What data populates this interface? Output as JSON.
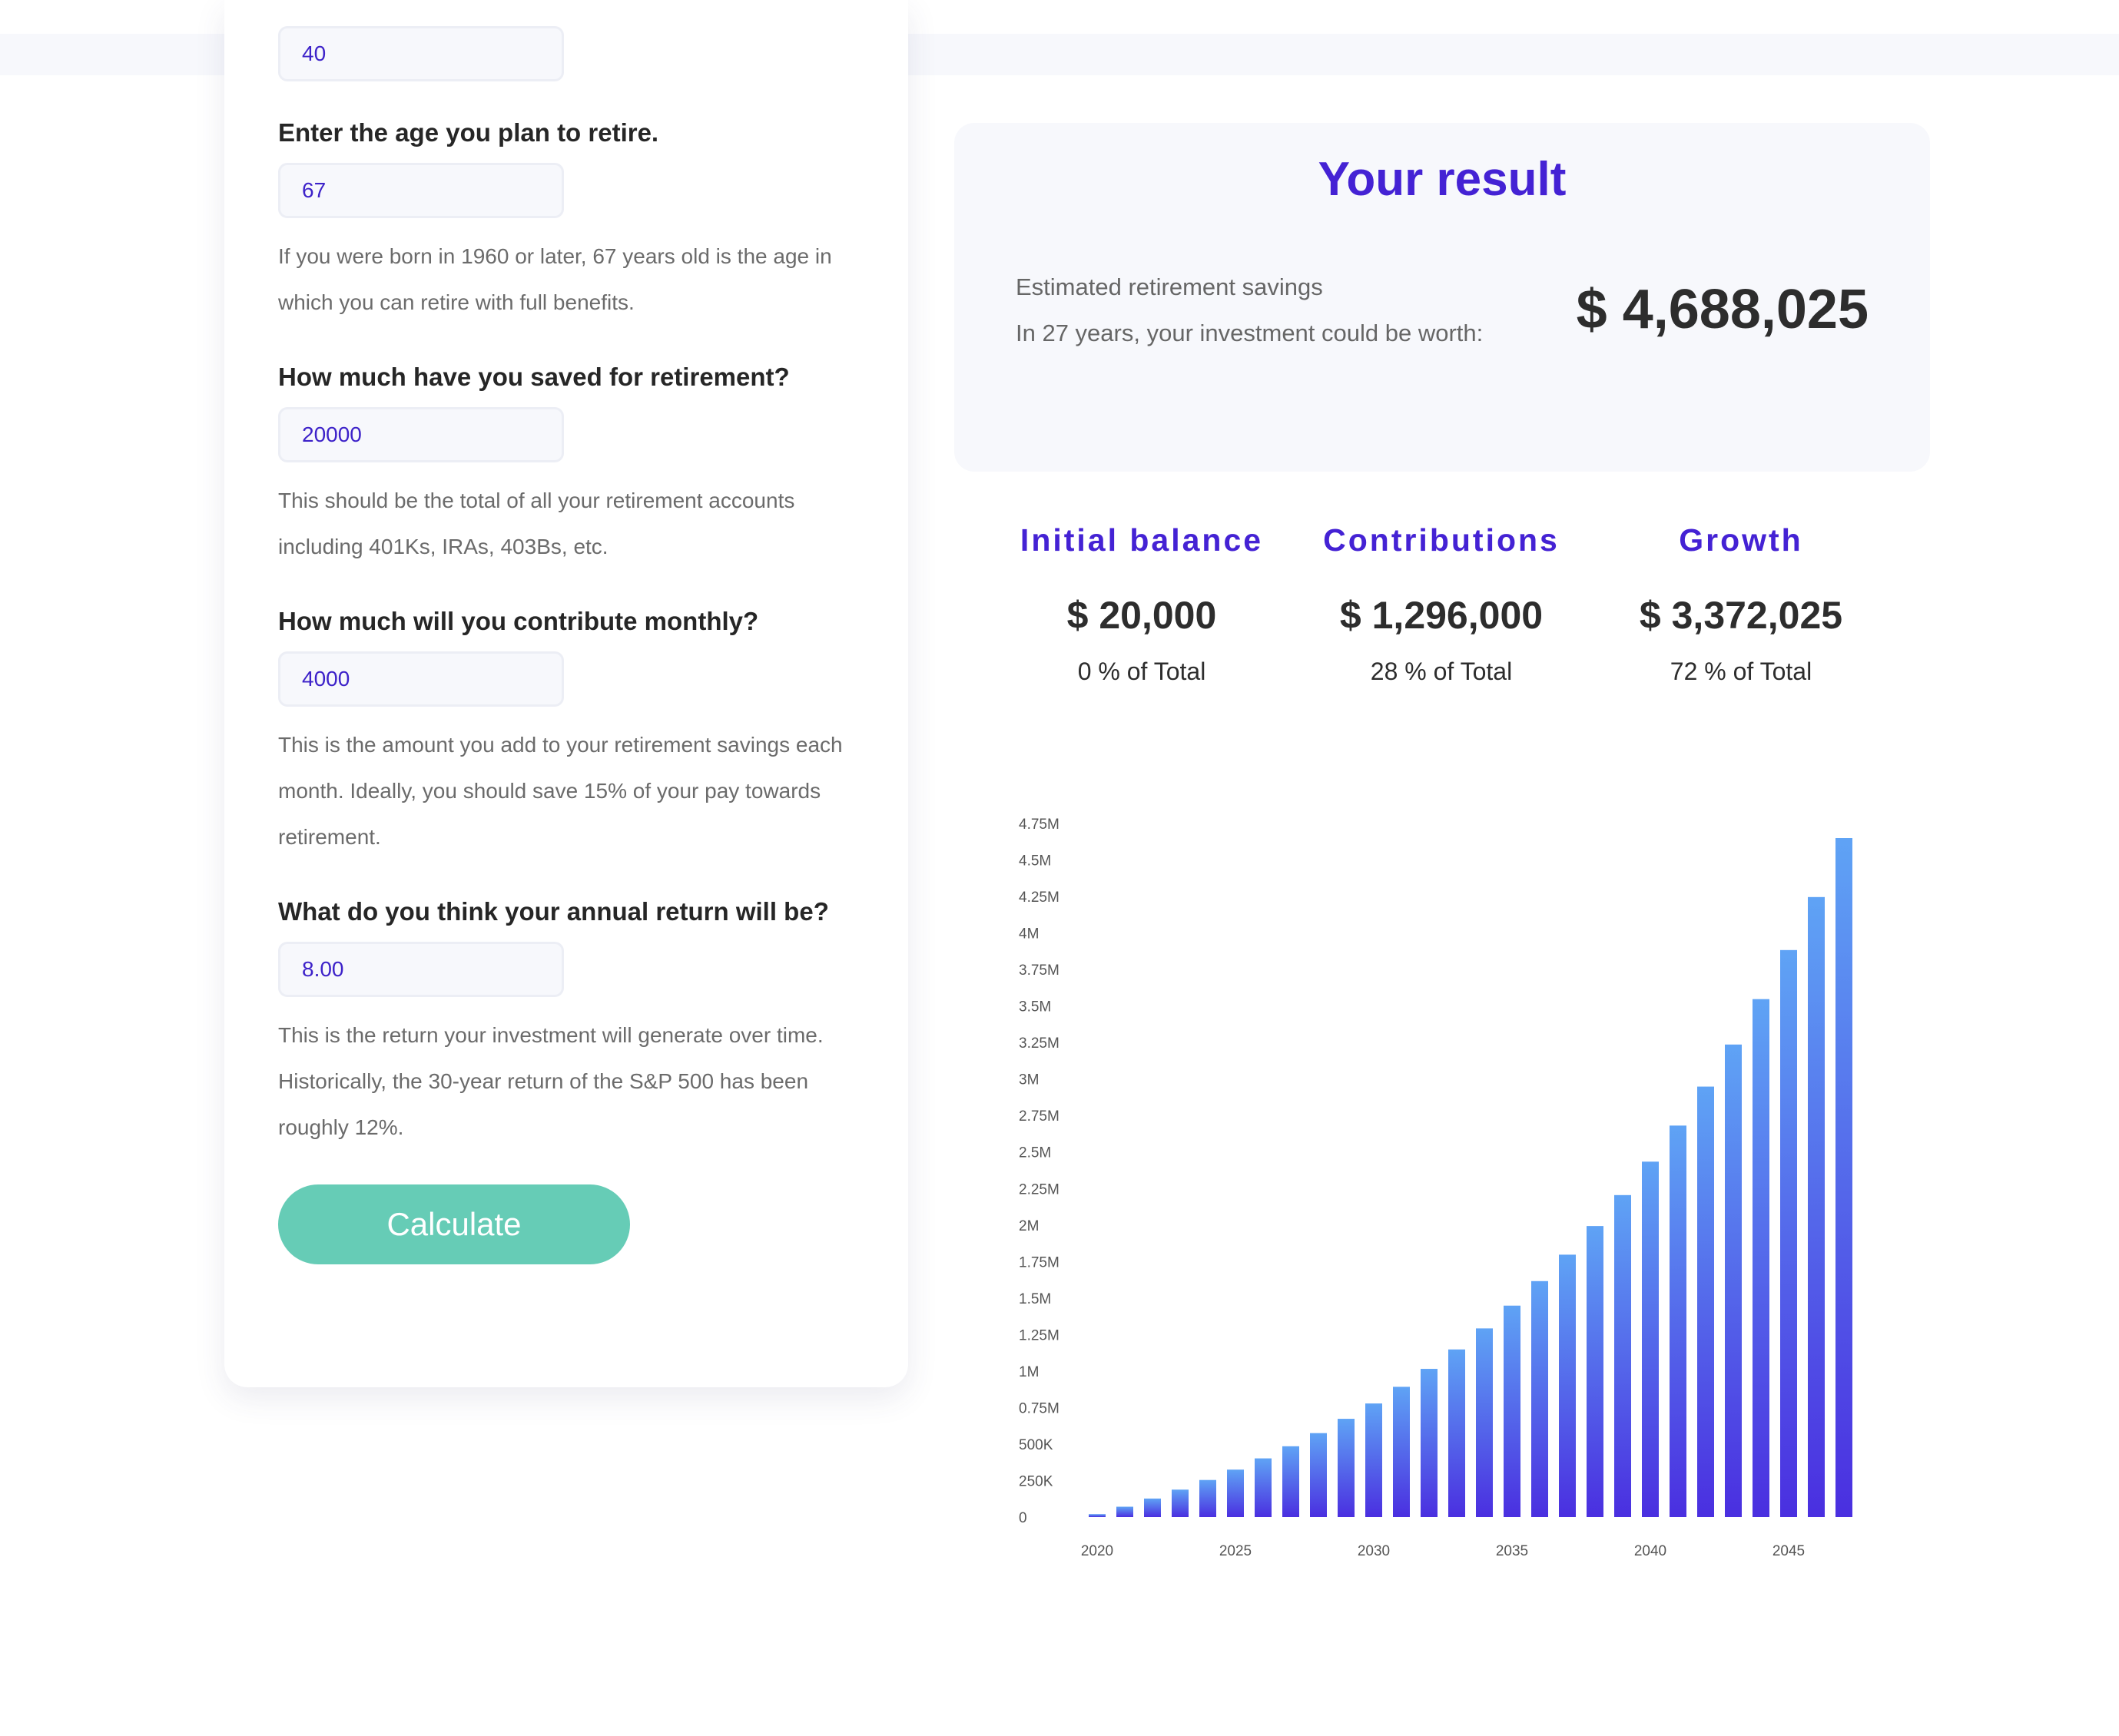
{
  "form": {
    "current_age": {
      "value": "40"
    },
    "retire_age": {
      "label": "Enter the age you plan to retire.",
      "value": "67",
      "help": "If you were born in 1960 or later, 67 years old is the age in which you can retire with full benefits."
    },
    "savings": {
      "label": "How much have you saved for retirement?",
      "value": "20000",
      "help": "This should be the total of all your retirement accounts including 401Ks, IRAs, 403Bs, etc."
    },
    "monthly": {
      "label": "How much will you contribute monthly?",
      "value": "4000",
      "help": "This is the amount you add to your retirement savings each month. Ideally, you should save 15% of your pay towards retirement."
    },
    "annual_return": {
      "label": "What do you think your annual return will be?",
      "value": "8.00",
      "help": "This is the return your investment will generate over time. Historically, the 30-year return of the S&P 500 has been roughly 12%."
    },
    "calculate_label": "Calculate"
  },
  "result": {
    "title": "Your result",
    "line1": "Estimated retirement savings",
    "line2": "In 27 years, your investment could be worth:",
    "amount": "$ 4,688,025"
  },
  "stats": [
    {
      "label": "Initial balance",
      "value": "$ 20,000",
      "pct": "0 % of Total"
    },
    {
      "label": "Contributions",
      "value": "$ 1,296,000",
      "pct": "28 % of Total"
    },
    {
      "label": "Growth",
      "value": "$ 3,372,025",
      "pct": "72 % of Total"
    }
  ],
  "colors": {
    "accent": "#4422d4",
    "button": "#66ccb6",
    "bar_top": "#5fa3f5",
    "bar_bottom": "#4a2fe0"
  },
  "chart_data": {
    "type": "bar",
    "categories": [
      "2020",
      "2021",
      "2022",
      "2023",
      "2024",
      "2025",
      "2026",
      "2027",
      "2028",
      "2029",
      "2030",
      "2031",
      "2032",
      "2033",
      "2034",
      "2035",
      "2036",
      "2037",
      "2038",
      "2039",
      "2040",
      "2041",
      "2042",
      "2043",
      "2044",
      "2045",
      "2046",
      "2047"
    ],
    "values": [
      20000,
      71000,
      127000,
      188000,
      254000,
      325000,
      402000,
      485000,
      575000,
      673000,
      778000,
      892000,
      1015000,
      1148000,
      1292000,
      1448000,
      1616000,
      1797000,
      1993000,
      2205000,
      2434000,
      2681000,
      2948000,
      3236000,
      3547000,
      3883000,
      4246000,
      4650000
    ],
    "x_tick_labels": [
      "2020",
      "2025",
      "2030",
      "2035",
      "2040",
      "2045"
    ],
    "y_tick_labels": [
      "0",
      "250K",
      "500K",
      "0.75M",
      "1M",
      "1.25M",
      "1.5M",
      "1.75M",
      "2M",
      "2.25M",
      "2.5M",
      "2.75M",
      "3M",
      "3.25M",
      "3.5M",
      "3.75M",
      "4M",
      "4.25M",
      "4.5M",
      "4.75M"
    ],
    "ylim": [
      0,
      4750000
    ],
    "grid": false,
    "legend": "none"
  }
}
